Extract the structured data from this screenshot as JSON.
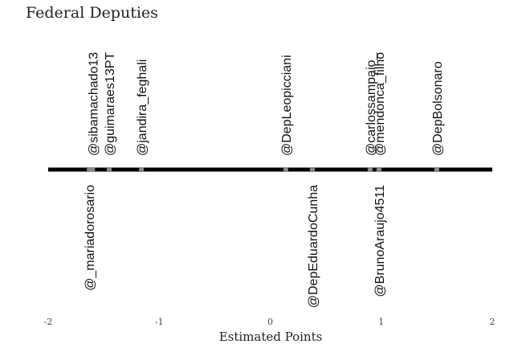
{
  "chart_data": {
    "type": "scatter",
    "title": "Federal Deputies",
    "xlabel": "Estimated Points",
    "ylabel": "",
    "xlim": [
      -2,
      2
    ],
    "x_ticks": [
      -2,
      -1,
      0,
      1,
      2
    ],
    "x_tick_labels": [
      "-2",
      "-1",
      "0",
      "1",
      "2"
    ],
    "grid": false,
    "legend": "none",
    "colors": {
      "line": "#000000",
      "points": "#888888",
      "text": "#111111"
    },
    "points": [
      {
        "label": "@sibamachado13",
        "x": -1.6,
        "side": "above"
      },
      {
        "label": "@_mariadorosario",
        "x": -1.63,
        "side": "below"
      },
      {
        "label": "@guimaraes13PT",
        "x": -1.45,
        "side": "above"
      },
      {
        "label": "@jandira_feghali",
        "x": -1.16,
        "side": "above"
      },
      {
        "label": "@DepLeopicciani",
        "x": 0.14,
        "side": "above"
      },
      {
        "label": "@DepEduardoCunha",
        "x": 0.38,
        "side": "below"
      },
      {
        "label": "@carlossampaio_",
        "x": 0.9,
        "side": "above"
      },
      {
        "label": "@mendonca_filho",
        "x": 0.98,
        "side": "above"
      },
      {
        "label": "@BrunoAraujo4511",
        "x": 0.98,
        "side": "below"
      },
      {
        "label": "@DepBolsonaro",
        "x": 1.5,
        "side": "above"
      }
    ]
  }
}
